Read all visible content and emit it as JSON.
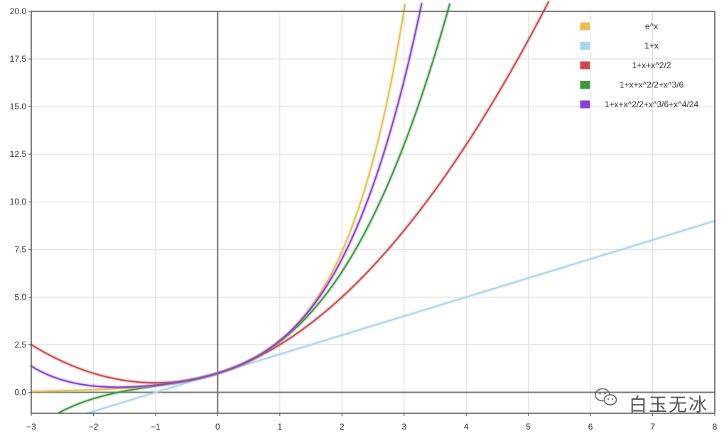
{
  "chart_data": {
    "type": "line",
    "title": "",
    "xlabel": "",
    "ylabel": "",
    "xlim": [
      -3,
      8
    ],
    "ylim": [
      -1.1,
      20
    ],
    "grid": true,
    "legend_position": "top-right",
    "x_ticks": [
      -3,
      -2,
      -1,
      0,
      1,
      2,
      3,
      4,
      5,
      6,
      7,
      8
    ],
    "x_tick_labels": [
      "−3",
      "−2",
      "−1",
      "0",
      "1",
      "2",
      "3",
      "4",
      "5",
      "6",
      "7",
      "8"
    ],
    "y_ticks": [
      0,
      2.5,
      5,
      7.5,
      10,
      12.5,
      15,
      17.5,
      20
    ],
    "y_tick_labels": [
      "0.0",
      "2.5",
      "5.0",
      "7.5",
      "10.0",
      "12.5",
      "15.0",
      "17.5",
      "20.0"
    ],
    "series": [
      {
        "name": "e^x",
        "color": "#e8bf4e",
        "order": 5,
        "x_range": [
          -3,
          8
        ]
      },
      {
        "name": "1+x",
        "color": "#a8d4ee",
        "order": 1,
        "x_range": [
          -2.1,
          8
        ]
      },
      {
        "name": "1+x+x^2/2",
        "color": "#c84a4a",
        "order": 2,
        "x_range": [
          -3,
          8
        ]
      },
      {
        "name": "1+x+x^2/2+x^3/6",
        "color": "#3a9a3a",
        "order": 3,
        "x_range": [
          -2.55,
          8
        ]
      },
      {
        "name": "1+x+x^2/2+x^3/6+x^4/24",
        "color": "#8a3fd6",
        "order": 4,
        "x_range": [
          -3,
          8
        ]
      }
    ]
  },
  "watermark": {
    "icon": "wechat-icon",
    "text": "白玉无冰"
  }
}
